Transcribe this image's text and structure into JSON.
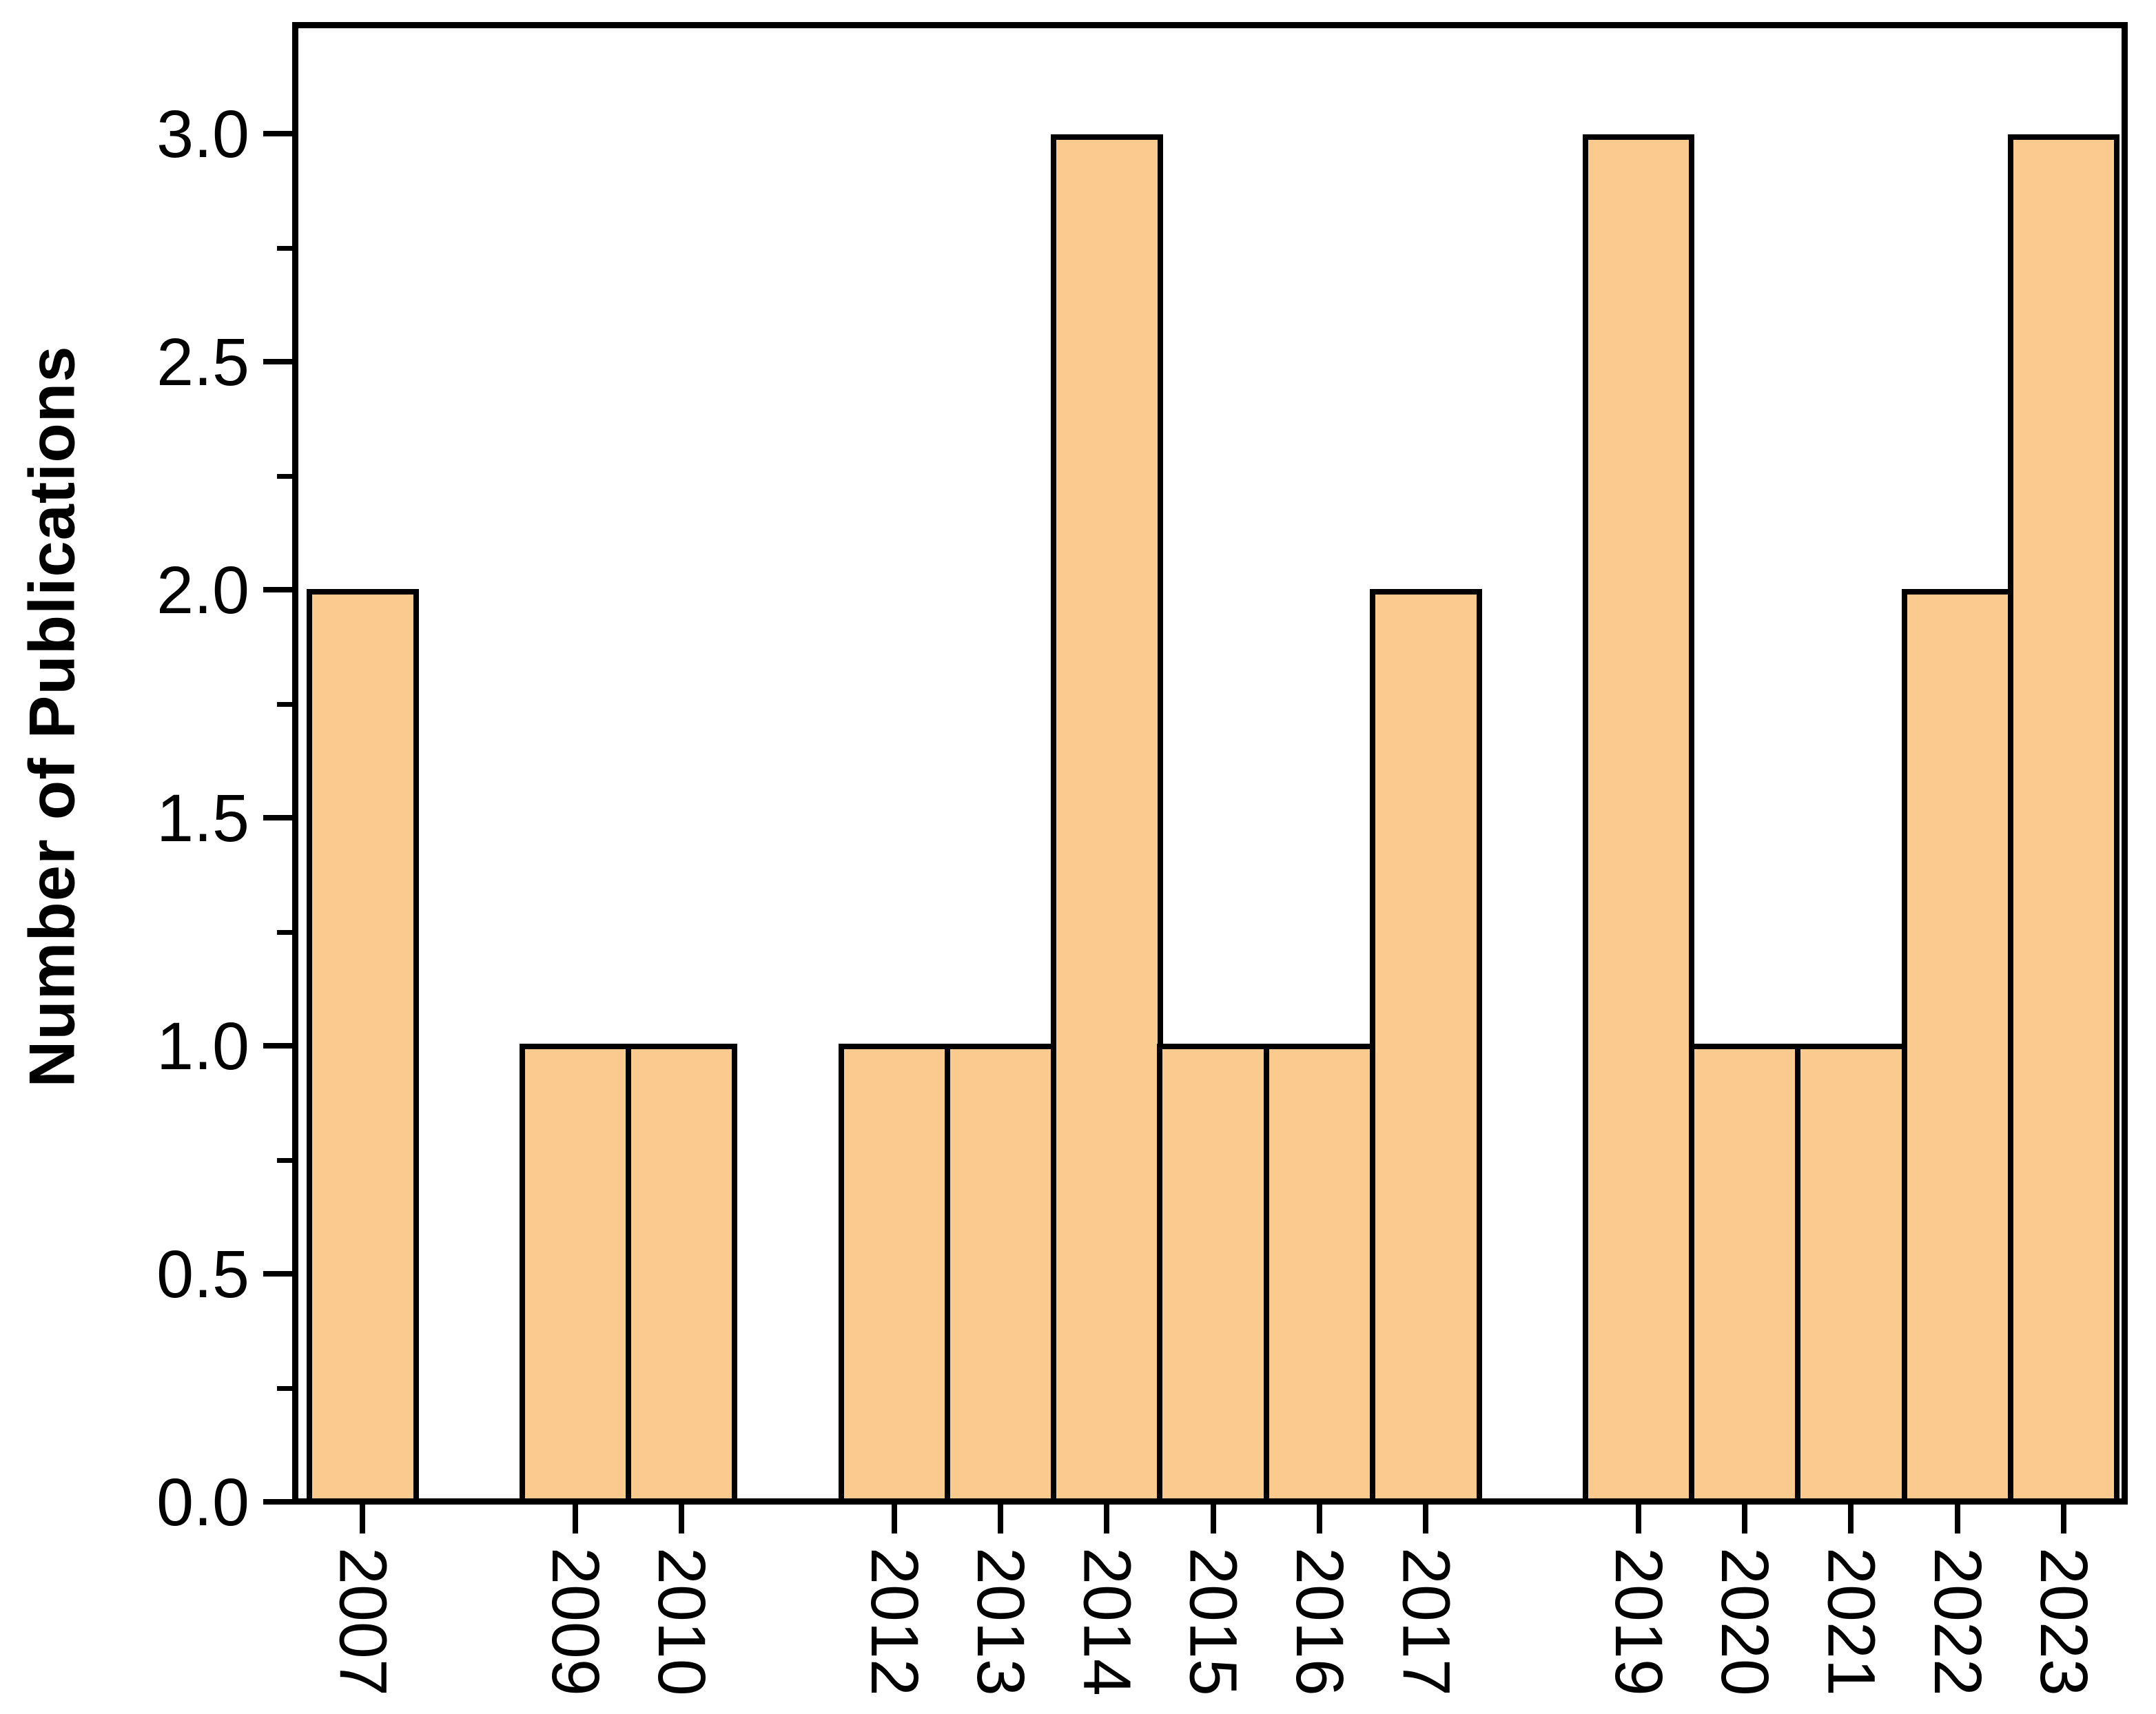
{
  "figure": {
    "background_color": "#ffffff",
    "axis_color": "#000000",
    "text_color": "#000000"
  },
  "chart_data": {
    "type": "bar",
    "title": "",
    "xlabel": "",
    "ylabel": "Number of Publications",
    "categories": [
      "2007",
      "2009",
      "2010",
      "2012",
      "2013",
      "2014",
      "2015",
      "2016",
      "2017",
      "2019",
      "2020",
      "2021",
      "2022",
      "2023"
    ],
    "values": [
      2,
      1,
      1,
      1,
      1,
      3,
      1,
      1,
      2,
      3,
      1,
      1,
      2,
      3
    ],
    "year_axis_start": 2007,
    "year_axis_end": 2023,
    "missing_years": [
      "2008",
      "2011",
      "2018"
    ],
    "ylim": [
      0,
      3.25
    ],
    "ytick_labels": [
      "0.0",
      "0.5",
      "1.0",
      "1.5",
      "2.0",
      "2.5",
      "3.0"
    ],
    "ytick_values": [
      0,
      0.5,
      1,
      1.5,
      2,
      2.5,
      3
    ],
    "minor_tick_interval": 0.25,
    "grid": "off",
    "legend": "none",
    "bar_fill_color": "#FACA8E",
    "bar_border_color": "#000000"
  }
}
